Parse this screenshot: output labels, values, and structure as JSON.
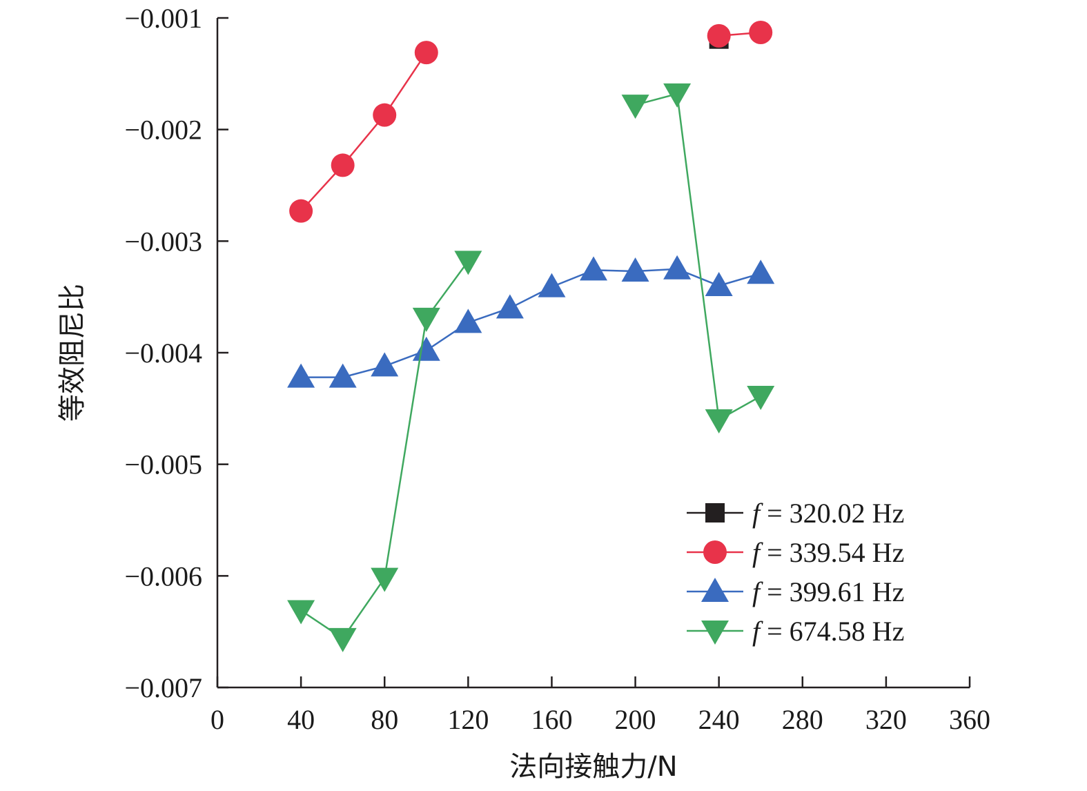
{
  "chart_data": {
    "type": "line",
    "title": "",
    "xlabel": "法向接触力/N",
    "ylabel": "等效阻尼比",
    "xlim": [
      0,
      360
    ],
    "ylim": [
      -0.007,
      -0.001
    ],
    "xticks": [
      0,
      40,
      80,
      120,
      160,
      200,
      240,
      280,
      320,
      360
    ],
    "xtick_labels": [
      "0",
      "40",
      "80",
      "120",
      "160",
      "200",
      "240",
      "280",
      "320",
      "360"
    ],
    "yticks": [
      -0.001,
      -0.002,
      -0.003,
      -0.004,
      -0.005,
      -0.006,
      -0.007
    ],
    "ytick_labels": [
      "−0.001",
      "−0.002",
      "−0.003",
      "−0.004",
      "−0.005",
      "−0.006",
      "−0.007"
    ],
    "grid": false,
    "legend_position": "bottom-right",
    "series": [
      {
        "name": "f = 320.02 Hz",
        "legend_symbol": "f",
        "legend_value": "= 320.02 Hz",
        "color": "#231f20",
        "marker": "square",
        "segments": [
          [
            [
              240,
              -0.00119
            ]
          ]
        ]
      },
      {
        "name": "f = 339.54 Hz",
        "legend_symbol": "f",
        "legend_value": "= 339.54 Hz",
        "color": "#e8334a",
        "marker": "circle",
        "segments": [
          [
            [
              40,
              -0.00273
            ],
            [
              60,
              -0.00232
            ],
            [
              80,
              -0.00187
            ],
            [
              100,
              -0.00131
            ]
          ],
          [
            [
              240,
              -0.00116
            ],
            [
              260,
              -0.00113
            ]
          ]
        ]
      },
      {
        "name": "f = 399.61 Hz",
        "legend_symbol": "f",
        "legend_value": "= 399.61 Hz",
        "color": "#3a6bbf",
        "marker": "triangle-up",
        "segments": [
          [
            [
              40,
              -0.00422
            ],
            [
              60,
              -0.00422
            ],
            [
              80,
              -0.00412
            ],
            [
              100,
              -0.00398
            ],
            [
              120,
              -0.00373
            ],
            [
              140,
              -0.0036
            ],
            [
              160,
              -0.00341
            ],
            [
              180,
              -0.00326
            ],
            [
              200,
              -0.00327
            ],
            [
              220,
              -0.00325
            ],
            [
              240,
              -0.0034
            ],
            [
              260,
              -0.00329
            ]
          ]
        ]
      },
      {
        "name": "f = 674.58 Hz",
        "legend_symbol": "f",
        "legend_value": "= 674.58 Hz",
        "color": "#3fa85f",
        "marker": "triangle-down",
        "segments": [
          [
            [
              40,
              -0.00631
            ],
            [
              60,
              -0.00656
            ],
            [
              80,
              -0.00602
            ],
            [
              100,
              -0.00369
            ],
            [
              120,
              -0.00318
            ]
          ],
          [
            [
              200,
              -0.00178
            ],
            [
              220,
              -0.00168
            ],
            [
              240,
              -0.0046
            ],
            [
              260,
              -0.00439
            ]
          ]
        ]
      }
    ]
  }
}
